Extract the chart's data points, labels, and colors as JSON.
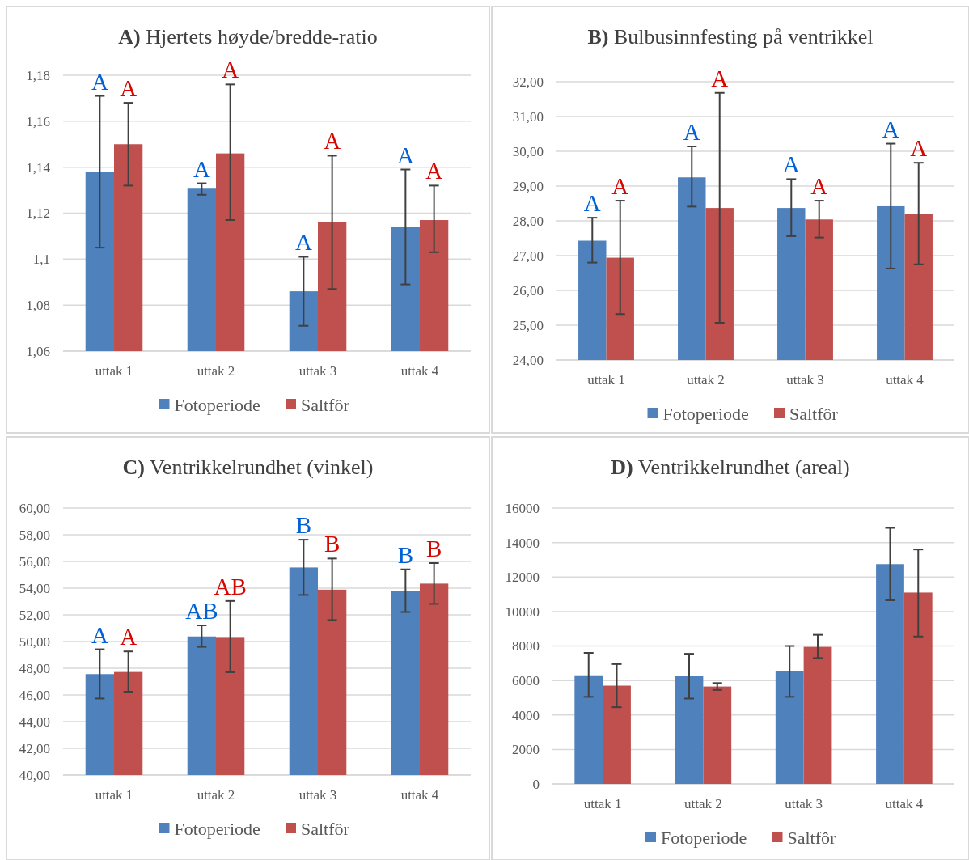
{
  "chart_data": [
    {
      "type": "bar",
      "title": "A) Hjertets høyde/bredde-ratio",
      "categories": [
        "uttak 1",
        "uttak 2",
        "uttak 3",
        "uttak 4"
      ],
      "series": [
        {
          "name": "Fotoperiode",
          "color": "#4f81bd",
          "values": [
            1.138,
            1.131,
            1.086,
            1.114
          ],
          "errors": [
            [
              1.105,
              1.171
            ],
            [
              1.128,
              1.133
            ],
            [
              1.071,
              1.101
            ],
            [
              1.089,
              1.139
            ]
          ]
        },
        {
          "name": "Saltfôr",
          "color": "#c0504d",
          "values": [
            1.15,
            1.146,
            1.116,
            1.117
          ],
          "errors": [
            [
              1.132,
              1.168
            ],
            [
              1.117,
              1.176
            ],
            [
              1.087,
              1.145
            ],
            [
              1.103,
              1.132
            ]
          ]
        }
      ],
      "annotations": [
        "A",
        "A",
        "A",
        "A",
        "A",
        "A",
        "A",
        "A"
      ],
      "ylim": [
        1.06,
        1.18
      ],
      "yticks": [
        {
          "value": 1.06,
          "label": "1,06"
        },
        {
          "value": 1.08,
          "label": "1,08"
        },
        {
          "value": 1.1,
          "label": "1,1"
        },
        {
          "value": 1.12,
          "label": "1,12"
        },
        {
          "value": 1.14,
          "label": "1,14"
        },
        {
          "value": 1.16,
          "label": "1,16"
        },
        {
          "value": 1.18,
          "label": "1,18"
        }
      ],
      "grid": "y",
      "legend": "bottom"
    },
    {
      "type": "bar",
      "title": "B) Bulbusinnfesting på ventrikkel",
      "categories": [
        "uttak 1",
        "uttak 2",
        "uttak 3",
        "uttak 4"
      ],
      "series": [
        {
          "name": "Fotoperiode",
          "color": "#4f81bd",
          "values": [
            27.43,
            29.25,
            28.37,
            28.42
          ],
          "errors": [
            [
              26.8,
              28.09
            ],
            [
              28.41,
              30.14
            ],
            [
              27.56,
              29.2
            ],
            [
              26.63,
              30.22
            ]
          ]
        },
        {
          "name": "Saltfôr",
          "color": "#c0504d",
          "values": [
            26.94,
            28.37,
            28.04,
            28.2
          ],
          "errors": [
            [
              25.32,
              28.58
            ],
            [
              25.07,
              31.68
            ],
            [
              27.52,
              28.58
            ],
            [
              26.75,
              29.67
            ]
          ]
        }
      ],
      "annotations": [
        "A",
        "A",
        "A",
        "A",
        "A",
        "A",
        "A",
        "A"
      ],
      "ylim": [
        24,
        32
      ],
      "yticks": [
        {
          "value": 24,
          "label": "24,00"
        },
        {
          "value": 25,
          "label": "25,00"
        },
        {
          "value": 26,
          "label": "26,00"
        },
        {
          "value": 27,
          "label": "27,00"
        },
        {
          "value": 28,
          "label": "28,00"
        },
        {
          "value": 29,
          "label": "29,00"
        },
        {
          "value": 30,
          "label": "30,00"
        },
        {
          "value": 31,
          "label": "31,00"
        },
        {
          "value": 32,
          "label": "32,00"
        }
      ],
      "grid": "y",
      "legend": "bottom"
    },
    {
      "type": "bar",
      "title": "C) Ventrikkelrundhet (vinkel)",
      "categories": [
        "uttak 1",
        "uttak 2",
        "uttak 3",
        "uttak 4"
      ],
      "series": [
        {
          "name": "Fotoperiode",
          "color": "#4f81bd",
          "values": [
            47.56,
            50.38,
            55.55,
            53.8
          ],
          "errors": [
            [
              45.73,
              49.42
            ],
            [
              49.6,
              51.21
            ],
            [
              53.49,
              57.63
            ],
            [
              52.21,
              55.41
            ]
          ]
        },
        {
          "name": "Saltfôr",
          "color": "#c0504d",
          "values": [
            47.72,
            50.34,
            53.89,
            54.34
          ],
          "errors": [
            [
              46.24,
              49.26
            ],
            [
              47.7,
              53.04
            ],
            [
              51.61,
              56.22
            ],
            [
              52.82,
              55.88
            ]
          ]
        }
      ],
      "annotations": [
        "A",
        "AB",
        "B",
        "B",
        "A",
        "AB",
        "B",
        "B"
      ],
      "ylim": [
        40,
        60
      ],
      "yticks": [
        {
          "value": 40,
          "label": "40,00"
        },
        {
          "value": 42,
          "label": "42,00"
        },
        {
          "value": 44,
          "label": "44,00"
        },
        {
          "value": 46,
          "label": "46,00"
        },
        {
          "value": 48,
          "label": "48,00"
        },
        {
          "value": 50,
          "label": "50,00"
        },
        {
          "value": 52,
          "label": "52,00"
        },
        {
          "value": 54,
          "label": "54,00"
        },
        {
          "value": 56,
          "label": "56,00"
        },
        {
          "value": 58,
          "label": "58,00"
        },
        {
          "value": 60,
          "label": "60,00"
        }
      ],
      "grid": "y",
      "legend": "bottom"
    },
    {
      "type": "bar",
      "title": "D) Ventrikkelrundhet (areal)",
      "categories": [
        "uttak 1",
        "uttak 2",
        "uttak 3",
        "uttak 4"
      ],
      "series": [
        {
          "name": "Fotoperiode",
          "color": "#4f81bd",
          "values": [
            6300,
            6250,
            6550,
            12750
          ],
          "errors": [
            [
              5050,
              7600
            ],
            [
              4950,
              7550
            ],
            [
              5050,
              8000
            ],
            [
              10650,
              14850
            ]
          ]
        },
        {
          "name": "Saltfôr",
          "color": "#c0504d",
          "values": [
            5700,
            5650,
            7950,
            11100
          ],
          "errors": [
            [
              4450,
              6950
            ],
            [
              5450,
              5850
            ],
            [
              7300,
              8650
            ],
            [
              8550,
              13600
            ]
          ]
        }
      ],
      "ylim": [
        0,
        16000
      ],
      "yticks": [
        0,
        2000,
        4000,
        6000,
        8000,
        10000,
        12000,
        14000,
        16000
      ],
      "grid": "y",
      "legend": "bottom"
    }
  ]
}
